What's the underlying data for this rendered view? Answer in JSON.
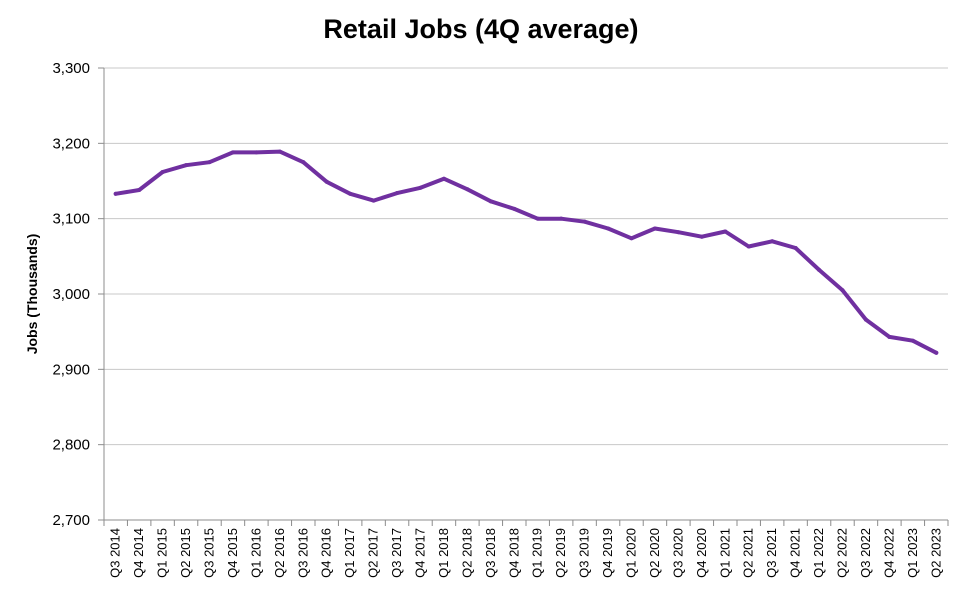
{
  "chart_data": {
    "type": "line",
    "title": "Retail Jobs (4Q average)",
    "ylabel": "Jobs (Thousands)",
    "xlabel": "",
    "ylim": [
      2700,
      3300
    ],
    "yticks": [
      2700,
      2800,
      2900,
      3000,
      3100,
      3200,
      3300
    ],
    "ytick_labels": [
      "2,700",
      "2,800",
      "2,900",
      "3,000",
      "3,100",
      "3,200",
      "3,300"
    ],
    "grid": true,
    "line_color": "#7030a0",
    "categories": [
      "Q3 2014",
      "Q4 2014",
      "Q1 2015",
      "Q2 2015",
      "Q3 2015",
      "Q4 2015",
      "Q1 2016",
      "Q2 2016",
      "Q3 2016",
      "Q4 2016",
      "Q1 2017",
      "Q2 2017",
      "Q3 2017",
      "Q4 2017",
      "Q1 2018",
      "Q2 2018",
      "Q3 2018",
      "Q4 2018",
      "Q1 2019",
      "Q2 2019",
      "Q3 2019",
      "Q4 2019",
      "Q1 2020",
      "Q2 2020",
      "Q3 2020",
      "Q4 2020",
      "Q1 2021",
      "Q2 2021",
      "Q3 2021",
      "Q4 2021",
      "Q1 2022",
      "Q2 2022",
      "Q3 2022",
      "Q4 2022",
      "Q1 2023",
      "Q2 2023"
    ],
    "series": [
      {
        "values": [
          3133,
          3138,
          3162,
          3171,
          3175,
          3188,
          3188,
          3189,
          3175,
          3149,
          3133,
          3124,
          3134,
          3141,
          3153,
          3139,
          3123,
          3113,
          3100,
          3100,
          3096,
          3087,
          3074,
          3087,
          3082,
          3076,
          3083,
          3063,
          3070,
          3061,
          3032,
          3005,
          2966,
          2943,
          2938,
          2922
        ]
      }
    ]
  }
}
